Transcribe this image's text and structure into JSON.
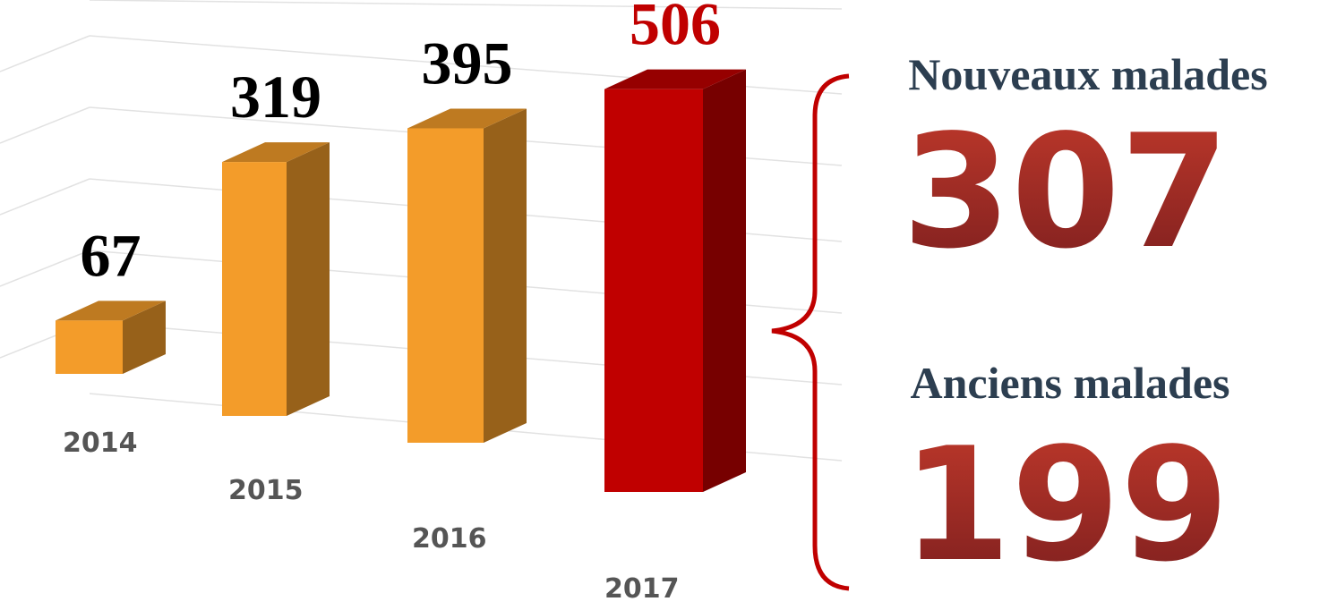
{
  "chart_data": {
    "type": "bar3d",
    "categories": [
      "2014",
      "2015",
      "2016",
      "2017"
    ],
    "values": [
      67,
      319,
      395,
      506
    ],
    "colors": [
      "#f39c2a",
      "#f39c2a",
      "#f39c2a",
      "#c00000"
    ],
    "label_colors": [
      "#000000",
      "#000000",
      "#000000",
      "#c00000"
    ],
    "annotations": [
      {
        "label": "Nouveaux malades",
        "value": 307
      },
      {
        "label": "Anciens malades",
        "value": 199
      }
    ]
  }
}
